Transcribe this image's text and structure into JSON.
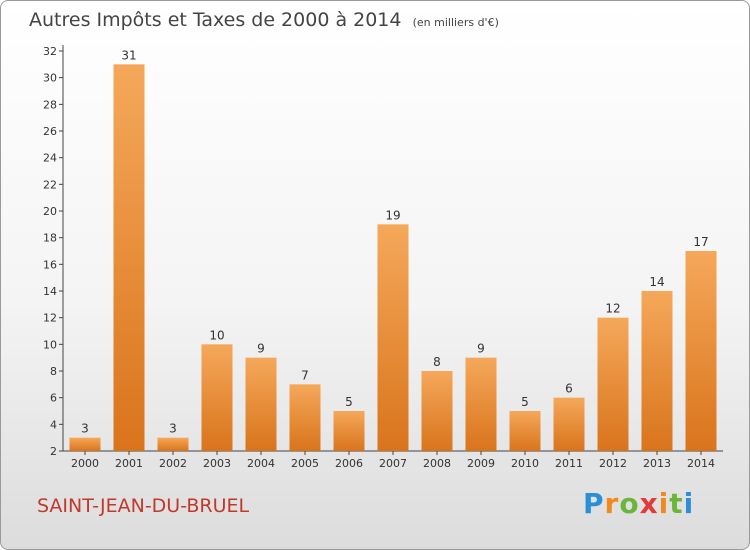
{
  "header": {
    "title": "Autres Impôts et Taxes de 2000 à 2014",
    "unit": "(en milliers d'€)"
  },
  "footer": {
    "commune": "SAINT-JEAN-DU-BRUEL",
    "logo": "Proxiti"
  },
  "colors": {
    "bar_light": "#f5a85a",
    "bar_dark": "#d9741c",
    "commune_text": "#c0392b"
  },
  "chart_data": {
    "type": "bar",
    "title": "Autres Impôts et Taxes de 2000 à 2014",
    "xlabel": "",
    "ylabel": "",
    "categories": [
      "2000",
      "2001",
      "2002",
      "2003",
      "2004",
      "2005",
      "2006",
      "2007",
      "2008",
      "2009",
      "2010",
      "2011",
      "2012",
      "2013",
      "2014"
    ],
    "values": [
      3,
      31,
      3,
      10,
      9,
      7,
      5,
      19,
      8,
      9,
      5,
      6,
      12,
      14,
      17
    ],
    "ylim": [
      2,
      32
    ],
    "yticks": [
      2,
      4,
      6,
      8,
      10,
      12,
      14,
      16,
      18,
      20,
      22,
      24,
      26,
      28,
      30,
      32
    ],
    "grid": false,
    "data_labels": true
  }
}
